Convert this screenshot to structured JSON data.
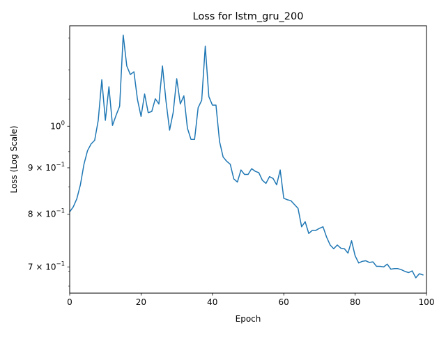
{
  "chart_data": {
    "type": "line",
    "title": "Loss for lstm_gru_200",
    "xlabel": "Epoch",
    "ylabel": "Loss (Log Scale)",
    "xscale": "linear",
    "yscale": "log",
    "xlim": [
      0,
      100
    ],
    "ylim": [
      0.655,
      1.29
    ],
    "grid": false,
    "x_ticks": [
      {
        "value": 0,
        "label": "0"
      },
      {
        "value": 20,
        "label": "20"
      },
      {
        "value": 40,
        "label": "40"
      },
      {
        "value": 60,
        "label": "60"
      },
      {
        "value": 80,
        "label": "80"
      },
      {
        "value": 100,
        "label": "100"
      }
    ],
    "y_ticks": [
      {
        "value": 1.0,
        "label": "10",
        "sup": "0"
      },
      {
        "value": 0.9,
        "label": "9 × 10",
        "sup": "−1"
      },
      {
        "value": 0.8,
        "label": "8 × 10",
        "sup": "−1"
      },
      {
        "value": 0.7,
        "label": "7 × 10",
        "sup": "−1"
      }
    ],
    "y_minor_ticks": [
      0.6667,
      0.6923,
      0.8571,
      0.9375,
      1.0714,
      1.1538,
      1.25
    ],
    "series": [
      {
        "color": "#1f77b4",
        "x": [
          0,
          1,
          2,
          3,
          4,
          5,
          6,
          7,
          8,
          9,
          10,
          11,
          12,
          13,
          14,
          15,
          16,
          17,
          18,
          19,
          20,
          21,
          22,
          23,
          24,
          25,
          26,
          27,
          28,
          29,
          30,
          31,
          32,
          33,
          34,
          35,
          36,
          37,
          38,
          39,
          40,
          41,
          42,
          43,
          44,
          45,
          46,
          47,
          48,
          49,
          50,
          51,
          52,
          53,
          54,
          55,
          56,
          57,
          58,
          59,
          60,
          61,
          62,
          63,
          64,
          65,
          66,
          67,
          68,
          69,
          70,
          71,
          72,
          73,
          74,
          75,
          76,
          77,
          78,
          79,
          80,
          81,
          82,
          83,
          84,
          85,
          86,
          87,
          88,
          89,
          90,
          91,
          92,
          93,
          94,
          95,
          96,
          97,
          98,
          99
        ],
        "values": [
          0.805,
          0.815,
          0.832,
          0.862,
          0.908,
          0.94,
          0.956,
          0.965,
          1.015,
          1.125,
          1.015,
          1.105,
          1.002,
          1.028,
          1.052,
          1.26,
          1.165,
          1.14,
          1.148,
          1.07,
          1.025,
          1.085,
          1.035,
          1.038,
          1.072,
          1.058,
          1.165,
          1.065,
          0.99,
          1.035,
          1.128,
          1.058,
          1.08,
          0.995,
          0.967,
          0.967,
          1.048,
          1.068,
          1.225,
          1.078,
          1.055,
          1.055,
          0.962,
          0.925,
          0.915,
          0.908,
          0.875,
          0.868,
          0.895,
          0.885,
          0.885,
          0.898,
          0.892,
          0.889,
          0.872,
          0.865,
          0.88,
          0.876,
          0.862,
          0.895,
          0.833,
          0.83,
          0.828,
          0.82,
          0.812,
          0.775,
          0.785,
          0.762,
          0.768,
          0.768,
          0.772,
          0.775,
          0.755,
          0.74,
          0.733,
          0.74,
          0.734,
          0.733,
          0.725,
          0.748,
          0.72,
          0.707,
          0.71,
          0.711,
          0.708,
          0.709,
          0.701,
          0.701,
          0.7,
          0.705,
          0.696,
          0.697,
          0.697,
          0.695,
          0.692,
          0.69,
          0.693,
          0.681,
          0.688,
          0.686
        ]
      }
    ]
  }
}
